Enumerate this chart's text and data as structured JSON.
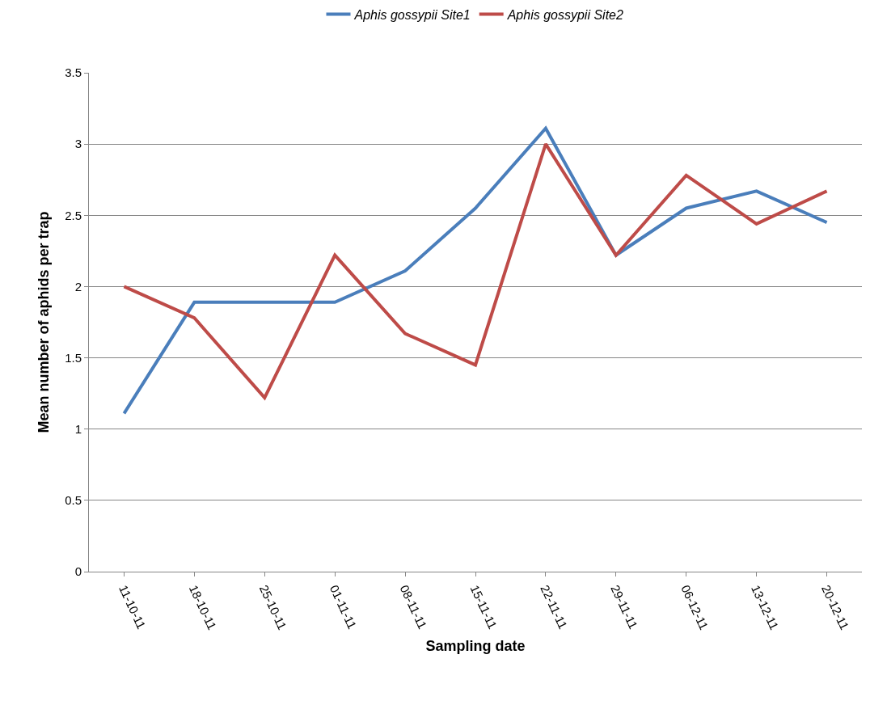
{
  "chart_data": {
    "type": "line",
    "xlabel": "Sampling date",
    "ylabel": "Mean number of aphids per trap",
    "categories": [
      "11-10-11",
      "18-10-11",
      "25-10-11",
      "01-11-11",
      "08-11-11",
      "15-11-11",
      "22-11-11",
      "29-11-11",
      "06-12-11",
      "13-12-11",
      "20-12-11"
    ],
    "series": [
      {
        "name": "Aphis gossypii Site1",
        "color": "#4a7ebb",
        "values": [
          1.11,
          1.89,
          1.89,
          1.89,
          2.11,
          2.55,
          3.11,
          2.22,
          2.55,
          2.67,
          2.45
        ]
      },
      {
        "name": "Aphis gossypii Site2",
        "color": "#be4b48",
        "values": [
          2.0,
          1.78,
          1.22,
          2.22,
          1.67,
          1.45,
          3.0,
          2.22,
          2.78,
          2.44,
          2.67
        ]
      }
    ],
    "ylim": [
      0,
      3.5
    ],
    "yticks": [
      0,
      0.5,
      1,
      1.5,
      2,
      2.5,
      3,
      3.5
    ],
    "grid": "y",
    "legend": "top",
    "marker": "none",
    "line_style": "solid"
  }
}
